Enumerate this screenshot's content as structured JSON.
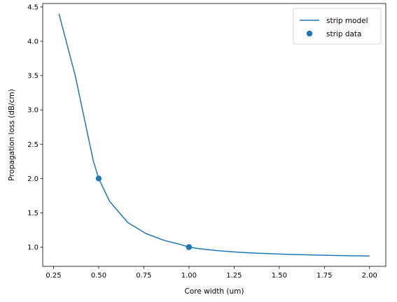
{
  "chart_data": {
    "type": "line",
    "title": "",
    "xlabel": "Core width (um)",
    "ylabel": "Propagation loss (dB/cm)",
    "xlim": [
      0.19,
      2.09
    ],
    "ylim": [
      0.72,
      4.55
    ],
    "xticks": [
      0.25,
      0.5,
      0.75,
      1.0,
      1.25,
      1.5,
      1.75,
      2.0
    ],
    "xtick_labels": [
      "0.25",
      "0.50",
      "0.75",
      "1.00",
      "1.25",
      "1.50",
      "1.75",
      "2.00"
    ],
    "yticks": [
      1.0,
      1.5,
      2.0,
      2.5,
      3.0,
      3.5,
      4.0,
      4.5
    ],
    "ytick_labels": [
      "1.0",
      "1.5",
      "2.0",
      "2.5",
      "3.0",
      "3.5",
      "4.0",
      "4.5"
    ],
    "grid": false,
    "legend_position": "top-right",
    "series": [
      {
        "name": "strip model",
        "kind": "line",
        "color": "#1f77b4",
        "x": [
          0.28,
          0.37,
          0.47,
          0.5,
          0.56,
          0.66,
          0.76,
          0.86,
          0.95,
          1.0,
          1.05,
          1.15,
          1.25,
          1.35,
          1.45,
          1.55,
          1.65,
          1.75,
          1.85,
          2.0
        ],
        "y": [
          4.4,
          3.5,
          2.26,
          2.0,
          1.67,
          1.36,
          1.2,
          1.1,
          1.04,
          1.0,
          0.98,
          0.95,
          0.93,
          0.915,
          0.905,
          0.895,
          0.888,
          0.882,
          0.877,
          0.87
        ]
      },
      {
        "name": "strip data",
        "kind": "scatter",
        "color": "#1f77b4",
        "x": [
          0.5,
          1.0
        ],
        "y": [
          2.0,
          1.0
        ]
      }
    ]
  }
}
